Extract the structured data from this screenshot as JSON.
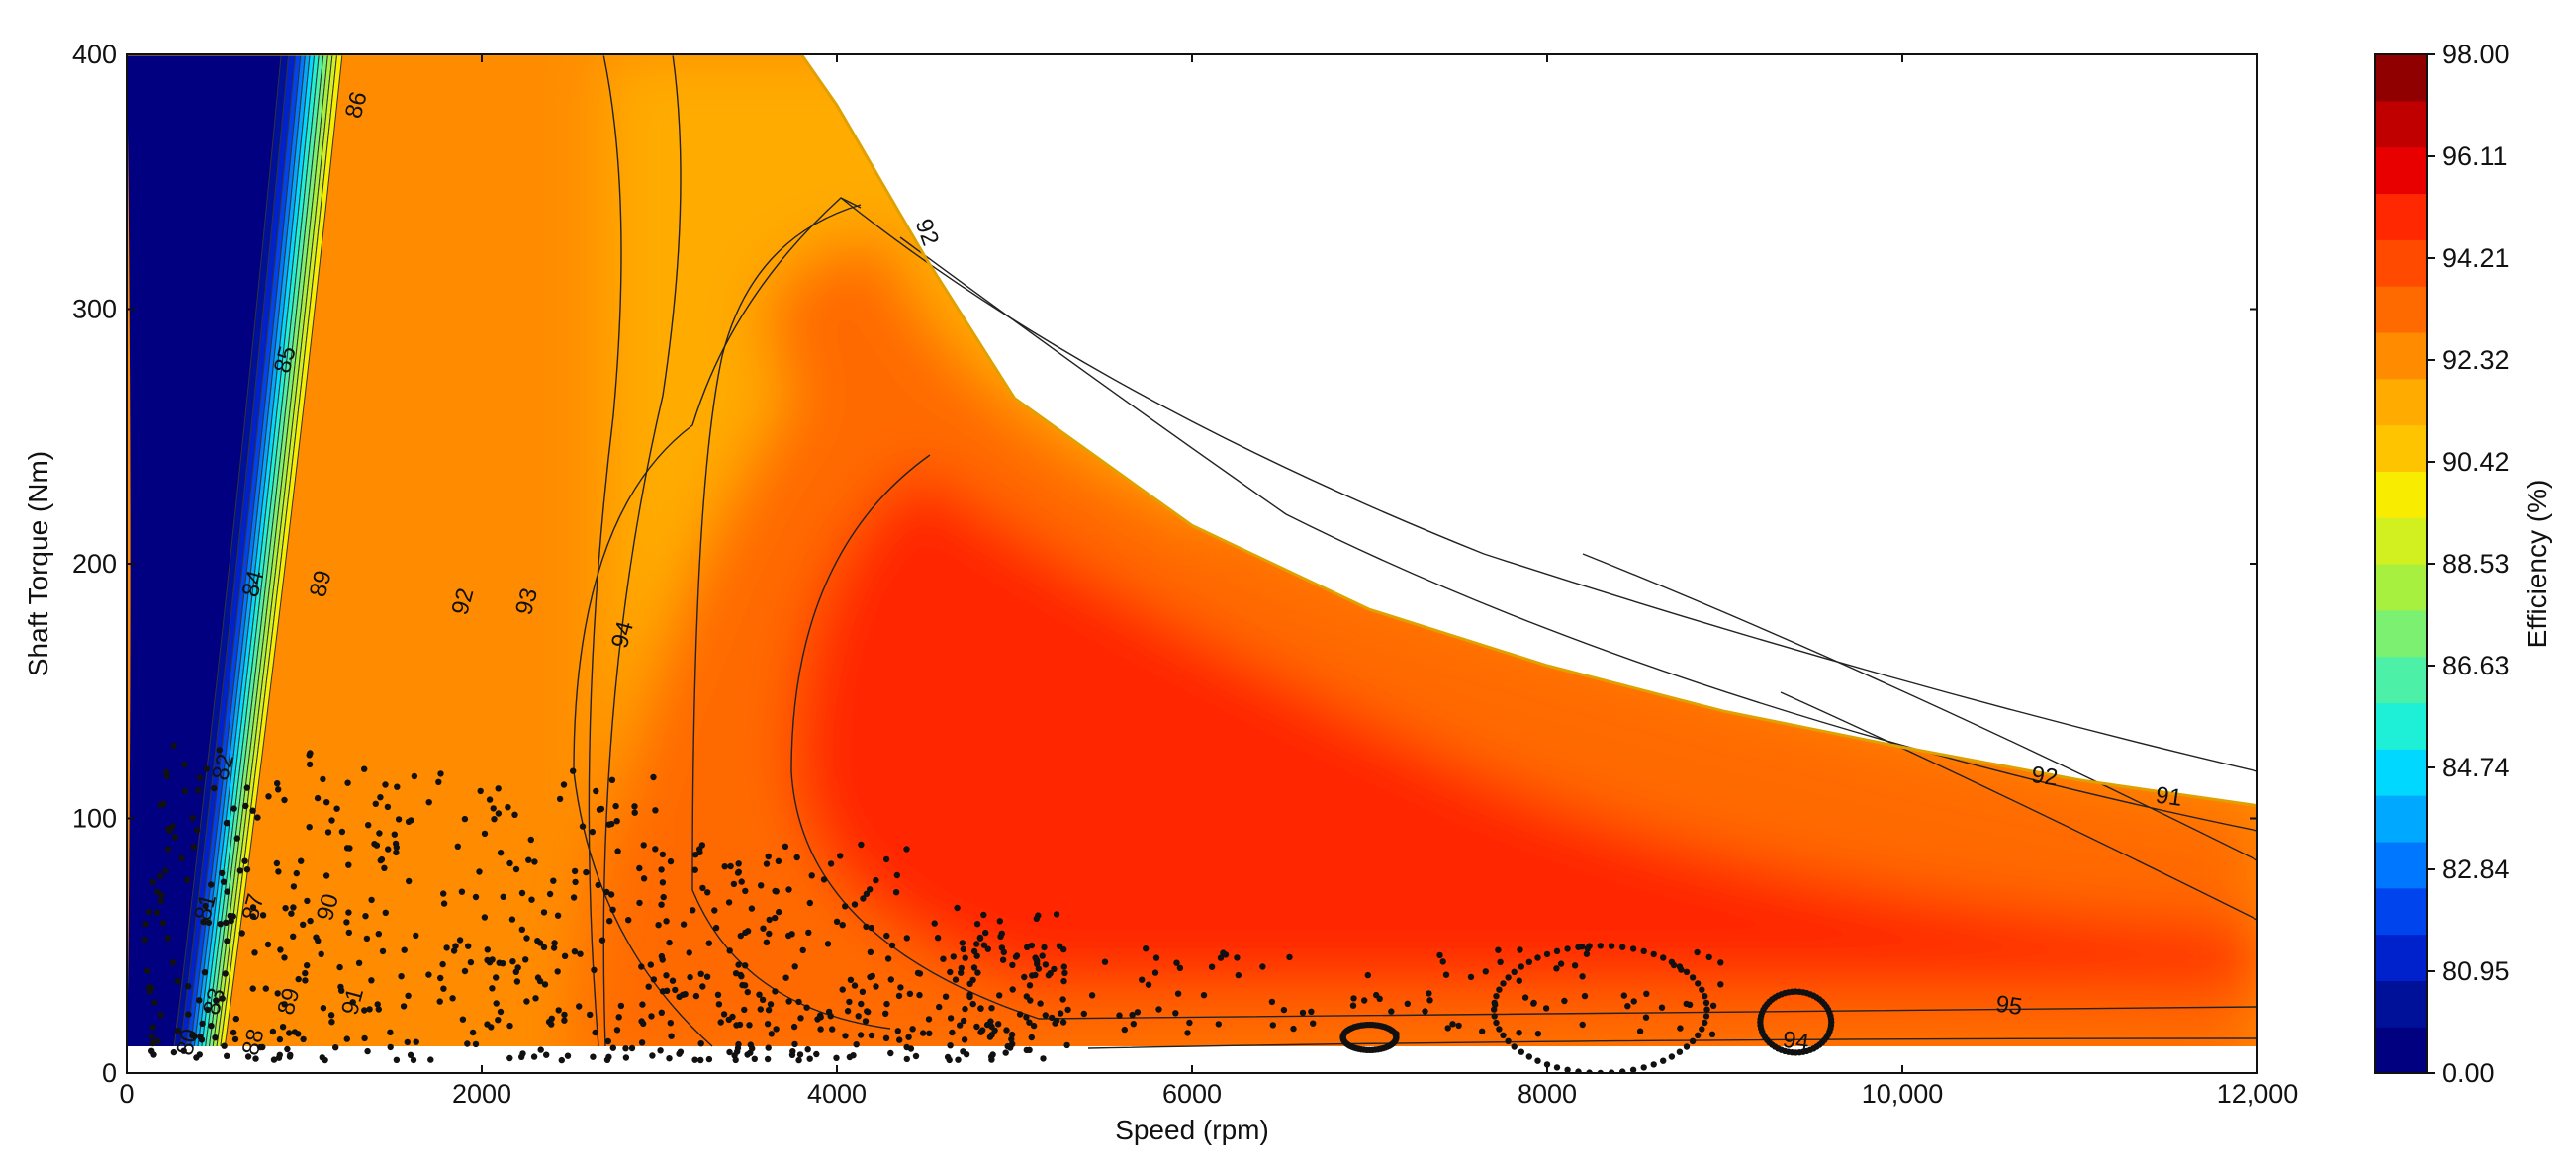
{
  "chart_data": {
    "type": "contour",
    "title": "",
    "xlabel": "Speed  (rpm)",
    "ylabel": "Shaft Torque  (Nm)",
    "xlim": [
      0,
      12000
    ],
    "ylim": [
      0,
      400
    ],
    "x_ticks": [
      "0",
      "2000",
      "4000",
      "6000",
      "8000",
      "10,000",
      "12,000"
    ],
    "y_ticks": [
      "0",
      "100",
      "200",
      "300",
      "400"
    ],
    "grid": false,
    "colorbar": {
      "label": "Efficiency (%)",
      "range": [
        0,
        98
      ],
      "tick_labels": [
        "0.00",
        "80.95",
        "82.84",
        "84.74",
        "86.63",
        "88.53",
        "90.42",
        "92.32",
        "94.21",
        "96.11",
        "98.00"
      ],
      "colors": [
        "#000080",
        "#001199",
        "#0022cc",
        "#0044ee",
        "#0077ff",
        "#00a8ff",
        "#00d8ff",
        "#1ef0d8",
        "#4cf0a6",
        "#7cf070",
        "#a8f040",
        "#d2f020",
        "#f8ec00",
        "#ffc400",
        "#ffab00",
        "#ff8c00",
        "#ff6a00",
        "#ff4a00",
        "#ff2800",
        "#e80000",
        "#c00000",
        "#900000"
      ]
    },
    "torque_envelope": [
      [
        0,
        400
      ],
      [
        3800,
        400
      ],
      [
        4000,
        380
      ],
      [
        4500,
        320
      ],
      [
        5000,
        265
      ],
      [
        6000,
        215
      ],
      [
        7000,
        182
      ],
      [
        8000,
        160
      ],
      [
        9000,
        142
      ],
      [
        10000,
        128
      ],
      [
        11000,
        115
      ],
      [
        12000,
        105
      ]
    ],
    "contour_labels": [
      {
        "text": "86",
        "x": 1300,
        "y": 380
      },
      {
        "text": "85",
        "x": 900,
        "y": 280
      },
      {
        "text": "84",
        "x": 720,
        "y": 192
      },
      {
        "text": "89",
        "x": 1100,
        "y": 192
      },
      {
        "text": "92",
        "x": 1900,
        "y": 185
      },
      {
        "text": "93",
        "x": 2260,
        "y": 185
      },
      {
        "text": "94",
        "x": 2800,
        "y": 172
      },
      {
        "text": "92",
        "x": 4500,
        "y": 330
      },
      {
        "text": "82",
        "x": 550,
        "y": 120
      },
      {
        "text": "81",
        "x": 450,
        "y": 65
      },
      {
        "text": "87",
        "x": 720,
        "y": 65
      },
      {
        "text": "90",
        "x": 1140,
        "y": 65
      },
      {
        "text": "83",
        "x": 500,
        "y": 28
      },
      {
        "text": "89",
        "x": 920,
        "y": 28
      },
      {
        "text": "91",
        "x": 1280,
        "y": 28
      },
      {
        "text": "80",
        "x": 350,
        "y": 12
      },
      {
        "text": "88",
        "x": 720,
        "y": 12
      },
      {
        "text": "92",
        "x": 10800,
        "y": 116
      },
      {
        "text": "91",
        "x": 11500,
        "y": 108
      },
      {
        "text": "95",
        "x": 10600,
        "y": 26
      },
      {
        "text": "94",
        "x": 9400,
        "y": 12
      }
    ],
    "operating_points_note_count": 900
  }
}
